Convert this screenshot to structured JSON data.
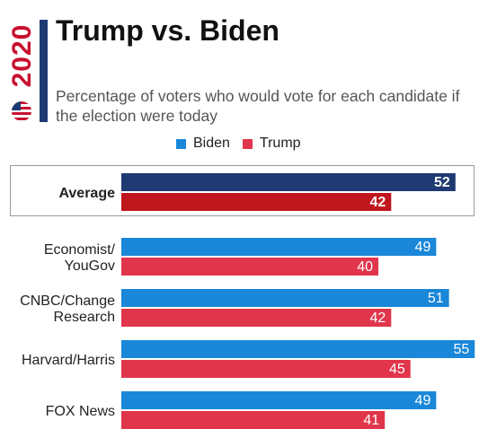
{
  "header": {
    "year": "2020",
    "title": "Trump vs. Biden",
    "subtitle": "Percentage of voters who would vote for each candidate if the election were today"
  },
  "colors": {
    "biden": "#1a87d9",
    "trump": "#e0354b",
    "biden_average": "#1f3a73",
    "trump_average": "#c0161e",
    "brand_bar": "#1f3a73"
  },
  "chart_data": {
    "type": "bar",
    "orientation": "horizontal",
    "categories": [
      "Average",
      "Economist/ YouGov",
      "CNBC/Change Research",
      "Harvard/Harris",
      "FOX News"
    ],
    "series": [
      {
        "name": "Biden",
        "values": [
          52,
          49,
          51,
          55,
          49
        ]
      },
      {
        "name": "Trump",
        "values": [
          42,
          40,
          42,
          45,
          41
        ]
      }
    ],
    "legend": [
      "Biden",
      "Trump"
    ],
    "legend_position": "top",
    "xlim": [
      0,
      55
    ],
    "grid": false
  }
}
